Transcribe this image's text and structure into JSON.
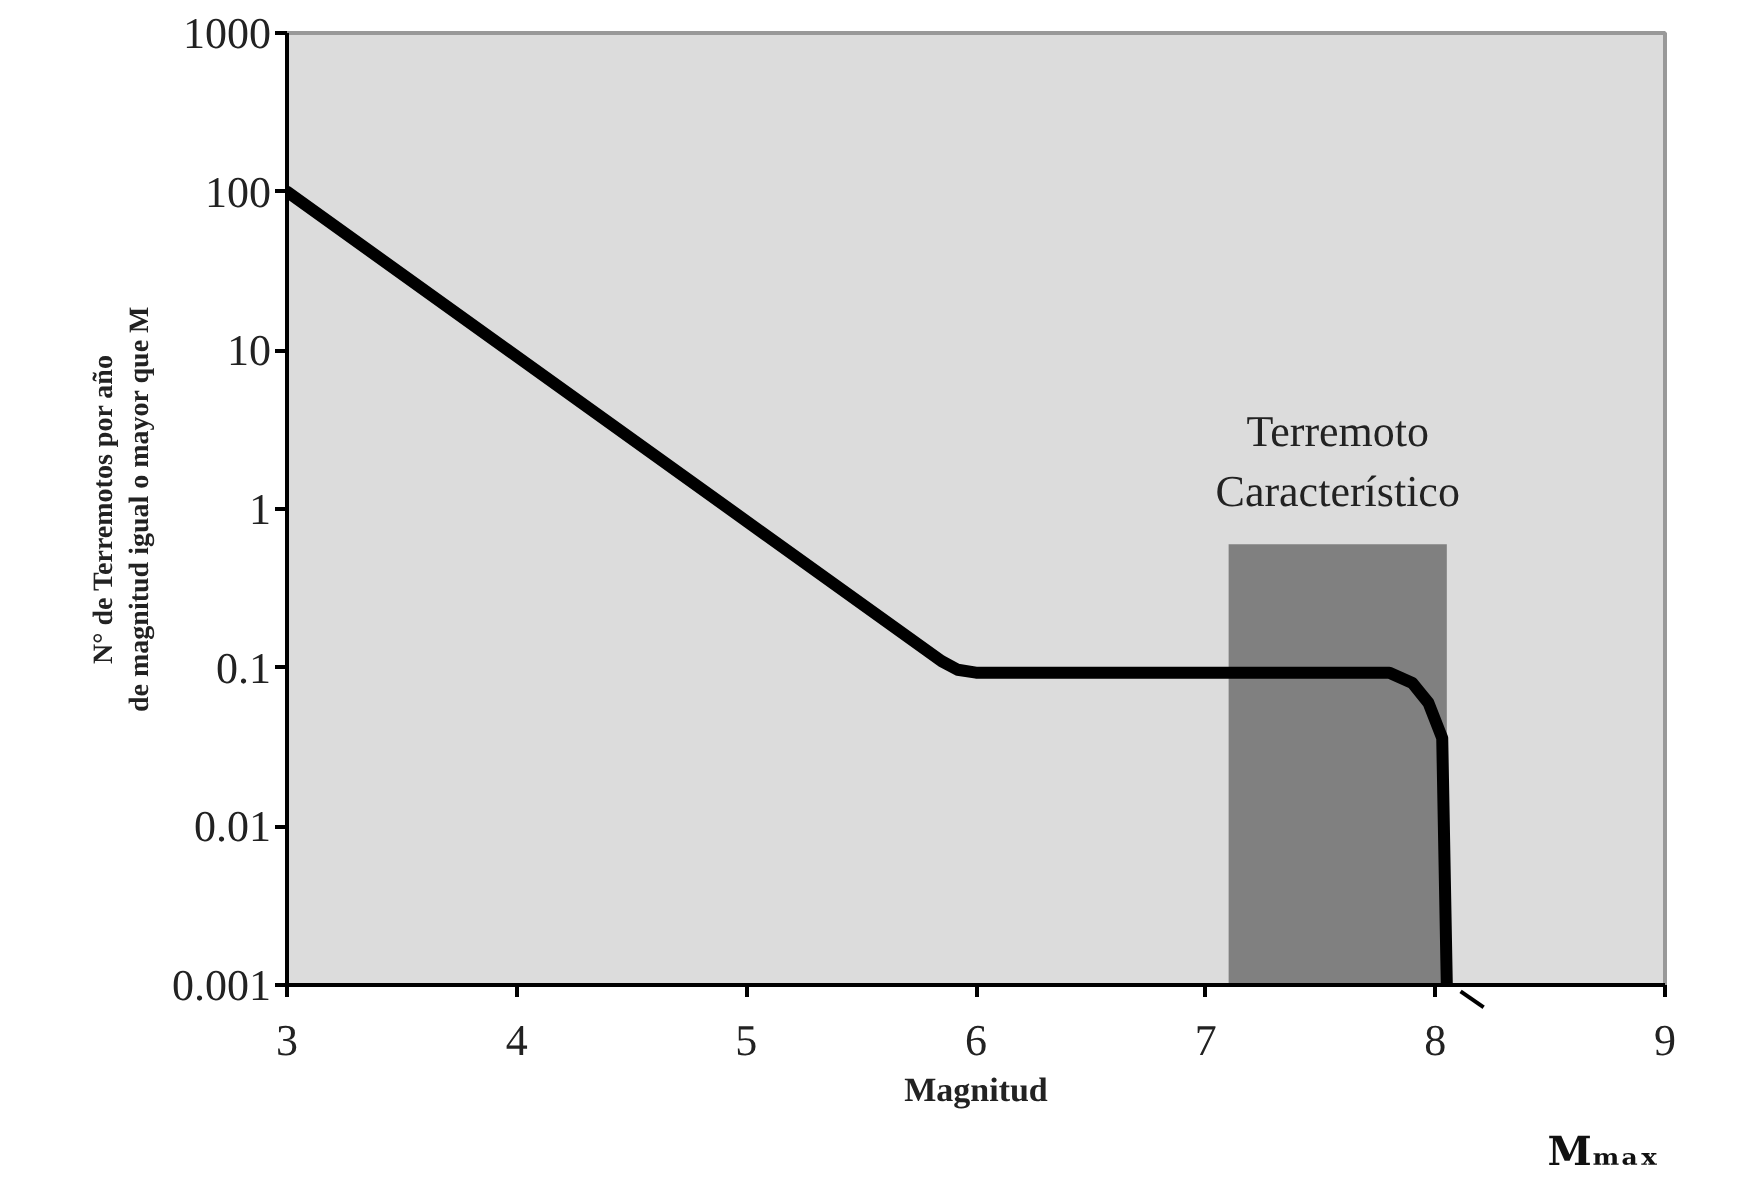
{
  "chart_data": {
    "type": "line",
    "xlabel": "Magnitud",
    "ylabel": "N° de Terremotos por año\nde magnitud igual o mayor que M",
    "log": "y",
    "xlim": [
      3,
      9
    ],
    "ylim": [
      0.001,
      1000
    ],
    "xticks": [
      3,
      4,
      5,
      6,
      7,
      8,
      9
    ],
    "yticks": [
      {
        "value": 0.001,
        "label": "0.001"
      },
      {
        "value": 0.01,
        "label": "0.01"
      },
      {
        "value": 0.1,
        "label": "0.1"
      },
      {
        "value": 1,
        "label": "1"
      },
      {
        "value": 10,
        "label": "10"
      },
      {
        "value": 100,
        "label": "100"
      },
      {
        "value": 1000,
        "label": "1000"
      }
    ],
    "grid": false,
    "marker": "none",
    "line_style": "solid",
    "series": [
      {
        "type": "area",
        "color": "#808080",
        "x": [
          7.1,
          8.05
        ],
        "values": [
          0.6,
          0.6
        ]
      },
      {
        "color": "#000000",
        "x": [
          3,
          5.85,
          5.92,
          6.0,
          7.8,
          7.9,
          7.97,
          8.03,
          8.05
        ],
        "values": [
          100,
          0.11,
          0.097,
          0.093,
          0.093,
          0.08,
          0.06,
          0.036,
          0.001
        ]
      }
    ],
    "annotations": [
      "Terremoto\nCaracterístico",
      {
        "text": "Mₘₐₓ",
        "x": 8.05,
        "y": 0.001
      }
    ]
  }
}
